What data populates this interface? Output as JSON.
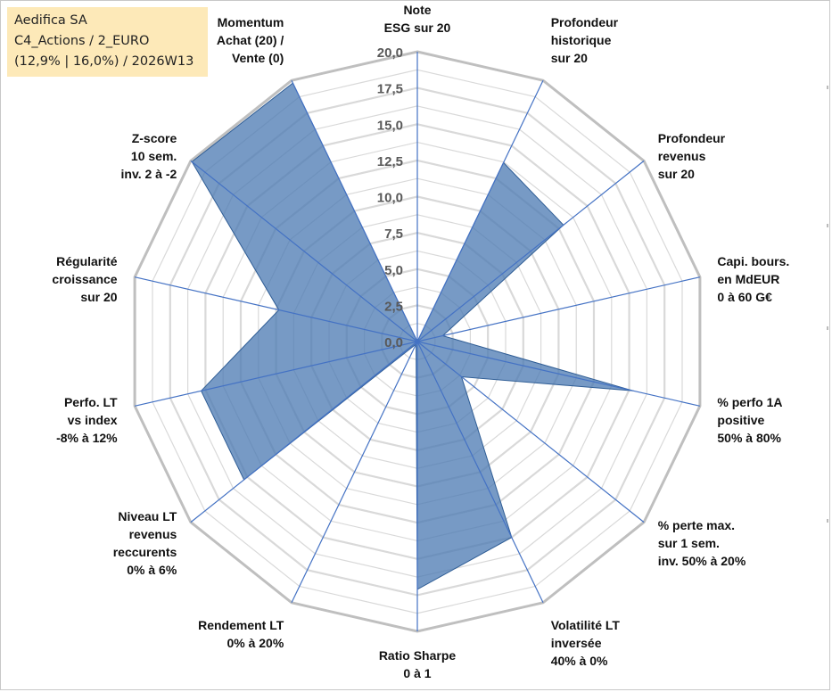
{
  "info": {
    "line1": "Aedifica SA",
    "line2": "C4_Actions / 2_EURO",
    "line3": "(12,9% | 16,0%) / 2026W13"
  },
  "chart_data": {
    "type": "radar",
    "title": "",
    "rmax": 20,
    "ticks": [
      "0,0",
      "2,5",
      "5,0",
      "7,5",
      "10,0",
      "12,5",
      "15,0",
      "17,5",
      "20,0"
    ],
    "axes": [
      [
        "Note",
        "ESG sur 20"
      ],
      [
        "Profondeur",
        "historique",
        "sur 20"
      ],
      [
        "Profondeur",
        "revenus",
        "sur 20"
      ],
      [
        "Capi. bours.",
        "en MdEUR",
        "0 à 60 G€"
      ],
      [
        "% perfo 1A",
        "positive",
        "50% à 80%"
      ],
      [
        "% perte max.",
        "sur 1 sem.",
        "inv. 50% à 20%"
      ],
      [
        "Volatilité LT",
        "inversée",
        "40% à 0%"
      ],
      [
        "Ratio Sharpe",
        "0 à 1"
      ],
      [
        "Rendement LT",
        "0% à 20%"
      ],
      [
        "Niveau LT",
        "revenus",
        "reccurents",
        "0% à 6%"
      ],
      [
        "Perfo. LT",
        "vs index",
        "-8% à 12%"
      ],
      [
        "Régularité",
        "croissance",
        "sur 20"
      ],
      [
        "Z-score",
        "10 sem.",
        "inv. 2 à -2"
      ],
      [
        "Momentum",
        "Achat (20) /",
        "Vente (0)"
      ]
    ],
    "series": [
      {
        "name": "Aedifica SA",
        "values": [
          0,
          13.7,
          12.9,
          1.8,
          15.3,
          3.9,
          15.0,
          17.1,
          0.2,
          15.3,
          15.3,
          9.8,
          19.9,
          19.8
        ]
      }
    ],
    "colors": {
      "fill": "#4a78b1",
      "fill_opacity": 0.75,
      "edge": "#2f5d95",
      "spokes": "#4472c4",
      "outer_grid": "#bfbfbf",
      "inner_grid": "#d9d9d9"
    }
  }
}
